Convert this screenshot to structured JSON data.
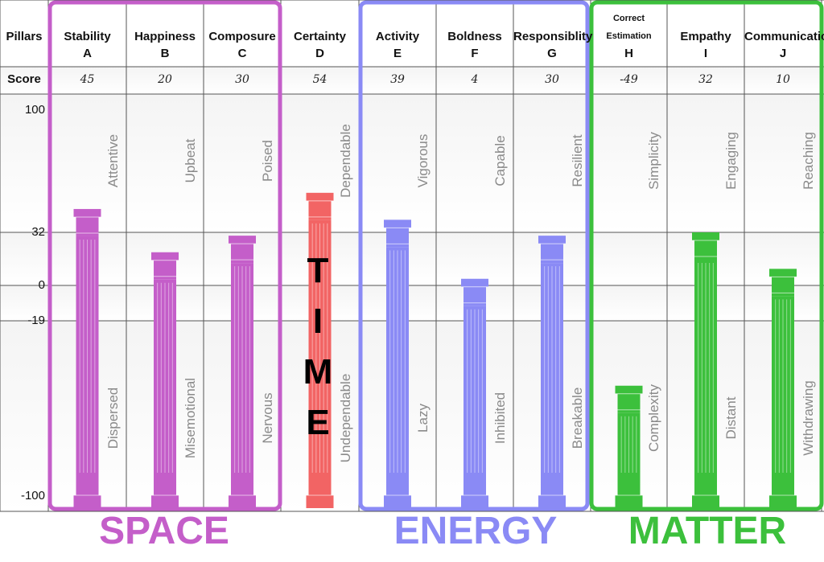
{
  "header": {
    "pillars_label": "Pillars",
    "score_label": "Score"
  },
  "columns": [
    {
      "name": "Stability",
      "letter": "A",
      "score": "45",
      "top_word": "Attentive",
      "bottom_word": "Dispersed",
      "group": "space"
    },
    {
      "name": "Happiness",
      "letter": "B",
      "score": "20",
      "top_word": "Upbeat",
      "bottom_word": "Misemotional",
      "group": "space"
    },
    {
      "name": "Composure",
      "letter": "C",
      "score": "30",
      "top_word": "Poised",
      "bottom_word": "Nervous",
      "group": "space"
    },
    {
      "name": "Certainty",
      "letter": "D",
      "score": "54",
      "top_word": "Dependable",
      "bottom_word": "Undependable",
      "group": "time"
    },
    {
      "name": "Activity",
      "letter": "E",
      "score": "39",
      "top_word": "Vigorous",
      "bottom_word": "Lazy",
      "group": "energy"
    },
    {
      "name": "Boldness",
      "letter": "F",
      "score": "4",
      "top_word": "Capable",
      "bottom_word": "Inhibited",
      "group": "energy"
    },
    {
      "name": "Responsiblity",
      "letter": "G",
      "score": "30",
      "top_word": "Resilient",
      "bottom_word": "Breakable",
      "group": "energy"
    },
    {
      "name": "Correct Estimation",
      "letter": "H",
      "score": "-49",
      "top_word": "Simplicity",
      "bottom_word": "Complexity",
      "group": "matter"
    },
    {
      "name": "Empathy",
      "letter": "I",
      "score": "32",
      "top_word": "Engaging",
      "bottom_word": "Distant",
      "group": "matter"
    },
    {
      "name": "Communication",
      "letter": "J",
      "score": "10",
      "top_word": "Reaching",
      "bottom_word": "Withdrawing",
      "group": "matter"
    }
  ],
  "groups": {
    "space": {
      "label": "SPACE",
      "color": "#c45ec9"
    },
    "time": {
      "label": "TIME",
      "color": "#f26464"
    },
    "energy": {
      "label": "ENERGY",
      "color": "#8a8af5"
    },
    "matter": {
      "label": "MATTER",
      "color": "#3cc03c"
    }
  },
  "chart_data": {
    "type": "bar",
    "categories": [
      "A",
      "B",
      "C",
      "D",
      "E",
      "F",
      "G",
      "H",
      "I",
      "J"
    ],
    "values": [
      45,
      20,
      30,
      54,
      39,
      4,
      30,
      -49,
      32,
      10
    ],
    "ylim": [
      -100,
      100
    ],
    "yticks": [
      "100",
      "32",
      "0",
      "-19",
      "-100"
    ],
    "ytick_values": [
      100,
      32,
      0,
      -19,
      -100
    ],
    "grid": true
  }
}
